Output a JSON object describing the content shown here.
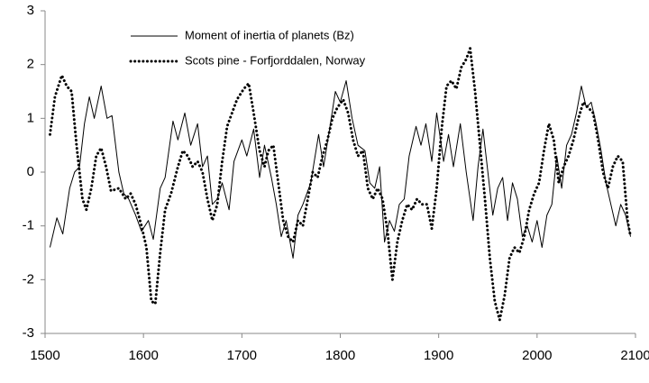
{
  "chart_data": {
    "type": "line",
    "xlim": [
      1500,
      2100
    ],
    "xticks": [
      1500,
      1600,
      1700,
      1800,
      1900,
      2000,
      2100
    ],
    "ylim": [
      -3,
      3
    ],
    "yticks": [
      -3,
      -2,
      -1,
      0,
      1,
      2,
      3
    ],
    "legend": "top-left",
    "series": [
      {
        "name": "Moment of inertia of planets (Bz)",
        "color": "#000000",
        "style": "solid",
        "x": [
          1505,
          1512,
          1518,
          1525,
          1530,
          1535,
          1540,
          1545,
          1550,
          1557,
          1563,
          1568,
          1575,
          1580,
          1585,
          1592,
          1598,
          1605,
          1610,
          1617,
          1622,
          1630,
          1635,
          1642,
          1648,
          1655,
          1660,
          1665,
          1670,
          1675,
          1680,
          1687,
          1692,
          1700,
          1705,
          1712,
          1718,
          1723,
          1730,
          1735,
          1740,
          1745,
          1752,
          1757,
          1762,
          1770,
          1778,
          1783,
          1790,
          1795,
          1800,
          1806,
          1812,
          1818,
          1825,
          1830,
          1835,
          1840,
          1845,
          1850,
          1855,
          1860,
          1865,
          1870,
          1877,
          1882,
          1887,
          1893,
          1898,
          1905,
          1910,
          1915,
          1922,
          1928,
          1935,
          1940,
          1945,
          1950,
          1955,
          1960,
          1965,
          1970,
          1975,
          1980,
          1985,
          1990,
          1995,
          2000,
          2005,
          2010,
          2015,
          2020,
          2025,
          2030,
          2035,
          2040,
          2045,
          2050,
          2055,
          2060,
          2065,
          2070,
          2075,
          2080,
          2085,
          2090,
          2095
        ],
        "values": [
          -1.4,
          -0.85,
          -1.15,
          -0.3,
          0,
          0.1,
          0.9,
          1.4,
          1.0,
          1.6,
          1.0,
          1.05,
          0,
          -0.4,
          -0.5,
          -0.8,
          -1.1,
          -0.9,
          -1.25,
          -0.3,
          -0.1,
          0.95,
          0.6,
          1.1,
          0.5,
          0.9,
          0.1,
          0.3,
          -0.6,
          -0.5,
          -0.2,
          -0.7,
          0.2,
          0.6,
          0.3,
          0.8,
          -0.1,
          0.5,
          -0.1,
          -0.6,
          -1.2,
          -0.9,
          -1.6,
          -0.8,
          -0.6,
          -0.2,
          0.7,
          0.1,
          0.9,
          1.5,
          1.3,
          1.7,
          1.0,
          0.5,
          0.4,
          -0.2,
          -0.3,
          0.1,
          -1.3,
          -0.9,
          -1.1,
          -0.6,
          -0.5,
          0.3,
          0.85,
          0.5,
          0.9,
          0.2,
          1.1,
          0.2,
          0.7,
          0.1,
          0.9,
          0,
          -0.9,
          0.1,
          0.8,
          0,
          -0.8,
          -0.3,
          -0.1,
          -0.9,
          -0.2,
          -0.5,
          -1.2,
          -1.0,
          -1.3,
          -0.9,
          -1.4,
          -0.8,
          -0.6,
          0.3,
          -0.3,
          0.5,
          0.7,
          1.1,
          1.6,
          1.2,
          1.3,
          0.9,
          0.4,
          -0.2,
          -0.6,
          -1.0,
          -0.6,
          -0.8,
          -1.2
        ]
      },
      {
        "name": "Scots pine - Forfjorddalen, Norway",
        "color": "#000000",
        "style": "dotted",
        "x": [
          1505,
          1510,
          1517,
          1522,
          1527,
          1532,
          1538,
          1542,
          1547,
          1552,
          1557,
          1562,
          1567,
          1575,
          1582,
          1587,
          1592,
          1598,
          1603,
          1608,
          1612,
          1617,
          1622,
          1628,
          1635,
          1640,
          1645,
          1650,
          1655,
          1660,
          1665,
          1670,
          1675,
          1680,
          1685,
          1690,
          1695,
          1702,
          1707,
          1712,
          1718,
          1723,
          1727,
          1732,
          1737,
          1742,
          1747,
          1752,
          1757,
          1762,
          1767,
          1772,
          1777,
          1782,
          1787,
          1792,
          1797,
          1803,
          1808,
          1813,
          1818,
          1823,
          1828,
          1833,
          1838,
          1843,
          1848,
          1853,
          1858,
          1863,
          1868,
          1873,
          1878,
          1883,
          1888,
          1893,
          1898,
          1903,
          1908,
          1913,
          1918,
          1923,
          1928,
          1932,
          1937,
          1942,
          1947,
          1952,
          1957,
          1962,
          1967,
          1972,
          1977,
          1982,
          1987,
          1992,
          1997,
          2002,
          2007,
          2012,
          2017,
          2022,
          2027,
          2032,
          2037,
          2042,
          2047,
          2052,
          2057,
          2062,
          2067,
          2072,
          2077,
          2082,
          2087,
          2092,
          2095
        ],
        "values": [
          0.7,
          1.4,
          1.8,
          1.6,
          1.5,
          0.5,
          -0.5,
          -0.7,
          -0.3,
          0.3,
          0.45,
          0.1,
          -0.35,
          -0.3,
          -0.5,
          -0.4,
          -0.6,
          -1.0,
          -1.4,
          -2.4,
          -2.45,
          -1.5,
          -0.7,
          -0.4,
          0.1,
          0.4,
          0.3,
          0.1,
          0.2,
          0,
          -0.5,
          -0.9,
          -0.6,
          0.2,
          0.85,
          1.1,
          1.35,
          1.55,
          1.65,
          1.1,
          0.4,
          0.1,
          0.4,
          0.5,
          -0.2,
          -0.9,
          -1.2,
          -1.3,
          -0.9,
          -1.0,
          -0.5,
          0,
          -0.1,
          0.3,
          0.6,
          1.0,
          1.2,
          1.35,
          1.1,
          0.6,
          0.3,
          0.4,
          -0.3,
          -0.5,
          -0.3,
          -0.5,
          -1.1,
          -2.0,
          -1.3,
          -0.9,
          -0.6,
          -0.7,
          -0.5,
          -0.6,
          -0.6,
          -1.05,
          -0.3,
          0.8,
          1.6,
          1.7,
          1.55,
          1.95,
          2.1,
          2.3,
          1.5,
          0.5,
          -0.5,
          -1.6,
          -2.4,
          -2.75,
          -2.3,
          -1.6,
          -1.4,
          -1.5,
          -1.2,
          -0.7,
          -0.4,
          -0.2,
          0.4,
          0.9,
          0.6,
          -0.2,
          0.1,
          0.3,
          0.6,
          1.0,
          1.3,
          1.2,
          1.1,
          0.6,
          0,
          -0.3,
          0.1,
          0.3,
          0.2,
          -0.9,
          -1.2
        ]
      }
    ]
  }
}
